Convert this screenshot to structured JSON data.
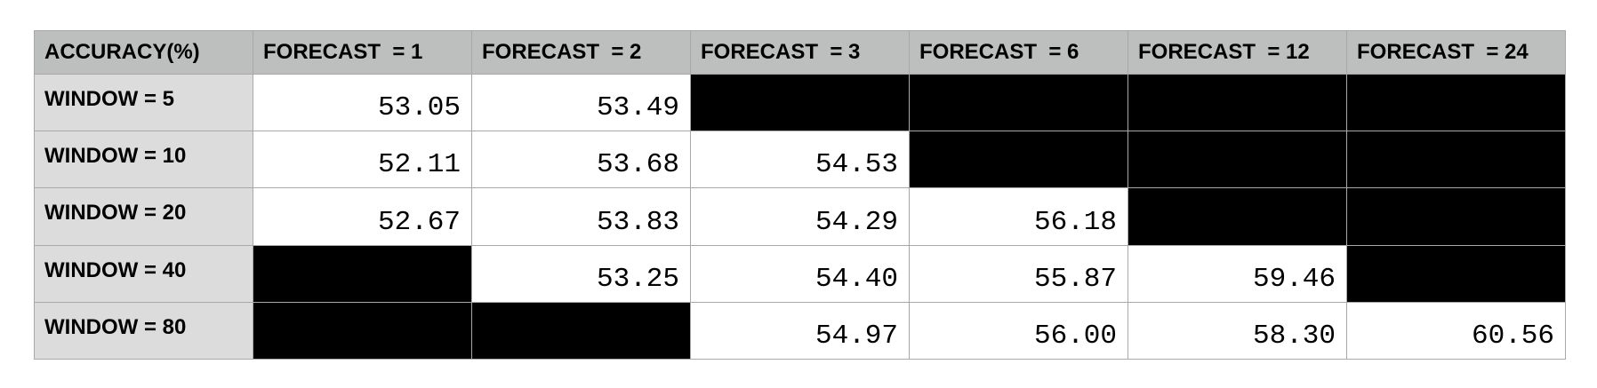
{
  "table": {
    "corner_label": "ACCURACY(%)",
    "columns": [
      "FORECAST  = 1",
      "FORECAST  = 2",
      "FORECAST  = 3",
      "FORECAST  = 6",
      "FORECAST  = 12",
      "FORECAST  = 24"
    ],
    "rows": [
      {
        "label": "WINDOW = 5",
        "values": [
          "53.05",
          "53.49",
          null,
          null,
          null,
          null
        ]
      },
      {
        "label": "WINDOW = 10",
        "values": [
          "52.11",
          "53.68",
          "54.53",
          null,
          null,
          null
        ]
      },
      {
        "label": "WINDOW = 20",
        "values": [
          "52.67",
          "53.83",
          "54.29",
          "56.18",
          null,
          null
        ]
      },
      {
        "label": "WINDOW = 40",
        "values": [
          null,
          "53.25",
          "54.40",
          "55.87",
          "59.46",
          null
        ]
      },
      {
        "label": "WINDOW = 80",
        "values": [
          null,
          null,
          "54.97",
          "56.00",
          "58.30",
          "60.56"
        ]
      }
    ],
    "colors": {
      "header_bg": "#bdbebe",
      "row_label_bg": "#dcdcdc",
      "empty_cell": "#000000",
      "border": "#a8a8a8"
    }
  }
}
